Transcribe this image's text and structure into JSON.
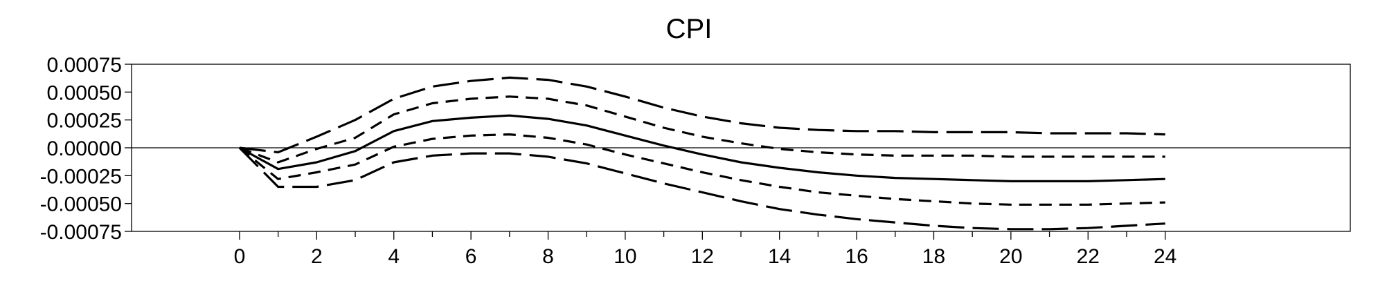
{
  "chart_data": {
    "type": "line",
    "title": "CPI",
    "xlabel": "",
    "ylabel": "",
    "xlim": [
      -2.8,
      28.8
    ],
    "ylim": [
      -0.00075,
      0.00075
    ],
    "x_ticks": [
      0,
      2,
      4,
      6,
      8,
      10,
      12,
      14,
      16,
      18,
      20,
      22,
      24
    ],
    "x_minor_ticks": [
      1,
      3,
      5,
      7,
      9,
      11,
      13,
      15,
      17,
      19,
      21,
      23
    ],
    "y_ticks": [
      "0.00075",
      "0.00050",
      "0.00025",
      "0.00000",
      "-0.00025",
      "-0.00050",
      "-0.00075"
    ],
    "y_tick_values": [
      0.00075,
      0.0005,
      0.00025,
      0,
      -0.00025,
      -0.0005,
      -0.00075
    ],
    "zero_line": true,
    "grid": false,
    "legend": "none",
    "x": [
      0,
      1,
      2,
      3,
      4,
      5,
      6,
      7,
      8,
      9,
      10,
      11,
      12,
      13,
      14,
      15,
      16,
      17,
      18,
      19,
      20,
      21,
      22,
      23,
      24
    ],
    "series": [
      {
        "style": "solid",
        "color": "#000000",
        "values": [
          0,
          -0.00019,
          -0.00013,
          -3e-05,
          0.00015,
          0.00024,
          0.00027,
          0.00029,
          0.00026,
          0.0002,
          0.00011,
          2e-05,
          -6e-05,
          -0.00013,
          -0.00018,
          -0.00022,
          -0.00025,
          -0.00027,
          -0.00028,
          -0.00029,
          -0.0003,
          -0.0003,
          -0.0003,
          -0.00029,
          -0.00028
        ]
      },
      {
        "style": "dash-short",
        "color": "#000000",
        "values": [
          0,
          -0.00013,
          -1e-05,
          9e-05,
          0.0003,
          0.0004,
          0.00044,
          0.00046,
          0.00044,
          0.00038,
          0.00028,
          0.00018,
          0.0001,
          4e-05,
          -1e-05,
          -4e-05,
          -6e-05,
          -7e-05,
          -7e-05,
          -7e-05,
          -8e-05,
          -8e-05,
          -8e-05,
          -8e-05,
          -8e-05
        ]
      },
      {
        "style": "dash-short",
        "color": "#000000",
        "values": [
          0,
          -0.00028,
          -0.00022,
          -0.00015,
          1e-05,
          8e-05,
          0.00011,
          0.00012,
          9e-05,
          3e-05,
          -6e-05,
          -0.00014,
          -0.00022,
          -0.00029,
          -0.00035,
          -0.0004,
          -0.00043,
          -0.00046,
          -0.00048,
          -0.0005,
          -0.00051,
          -0.00051,
          -0.00051,
          -0.0005,
          -0.00049
        ]
      },
      {
        "style": "dash-long",
        "color": "#000000",
        "values": [
          0,
          -4e-05,
          0.0001,
          0.00025,
          0.00044,
          0.00055,
          0.0006,
          0.00063,
          0.00061,
          0.00055,
          0.00046,
          0.00036,
          0.00028,
          0.00022,
          0.00018,
          0.00016,
          0.00015,
          0.00015,
          0.00014,
          0.00014,
          0.00014,
          0.00013,
          0.00013,
          0.00013,
          0.00012
        ]
      },
      {
        "style": "dash-long",
        "color": "#000000",
        "values": [
          0,
          -0.00035,
          -0.00035,
          -0.00029,
          -0.00013,
          -7e-05,
          -5e-05,
          -5e-05,
          -8e-05,
          -0.00014,
          -0.00023,
          -0.00032,
          -0.0004,
          -0.00048,
          -0.00055,
          -0.0006,
          -0.00064,
          -0.00067,
          -0.0007,
          -0.00072,
          -0.00073,
          -0.00073,
          -0.00072,
          -0.0007,
          -0.00068
        ]
      }
    ]
  }
}
